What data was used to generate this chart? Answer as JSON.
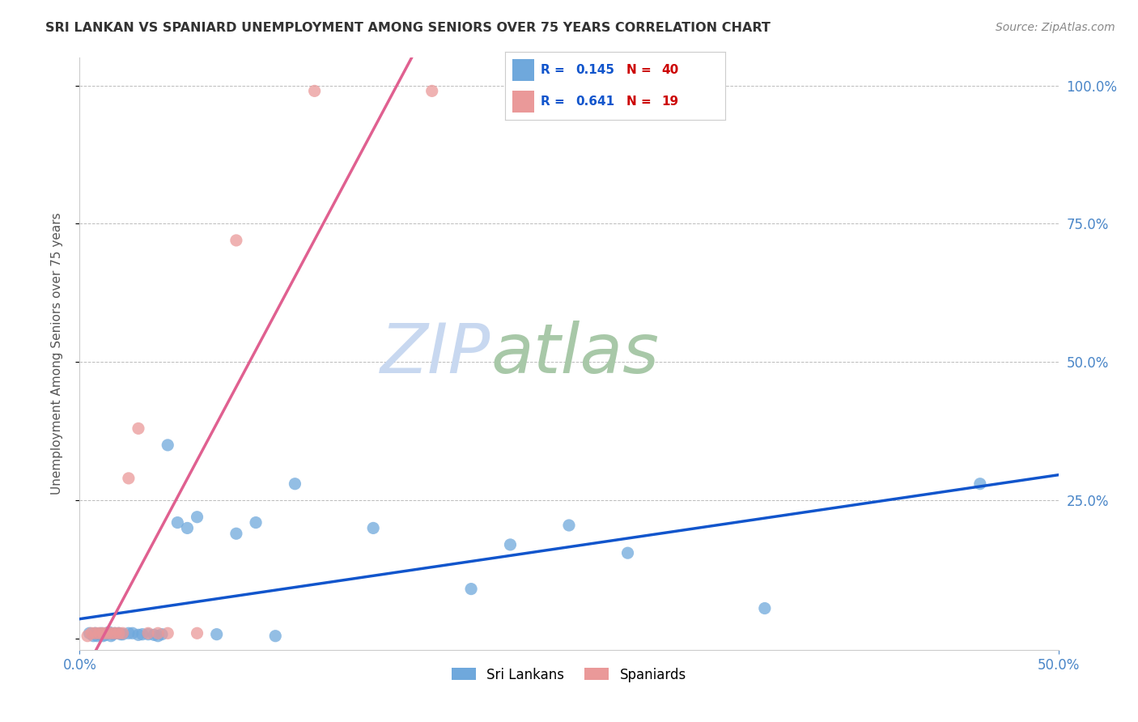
{
  "title": "SRI LANKAN VS SPANIARD UNEMPLOYMENT AMONG SENIORS OVER 75 YEARS CORRELATION CHART",
  "source": "Source: ZipAtlas.com",
  "ylabel": "Unemployment Among Seniors over 75 years",
  "xlim": [
    0,
    0.5
  ],
  "ylim": [
    -0.02,
    1.05
  ],
  "sri_lankans_x": [
    0.005,
    0.007,
    0.008,
    0.009,
    0.01,
    0.011,
    0.012,
    0.013,
    0.014,
    0.015,
    0.016,
    0.017,
    0.018,
    0.02,
    0.021,
    0.022,
    0.025,
    0.027,
    0.03,
    0.032,
    0.035,
    0.038,
    0.04,
    0.042,
    0.045,
    0.05,
    0.055,
    0.06,
    0.07,
    0.08,
    0.09,
    0.1,
    0.11,
    0.15,
    0.2,
    0.22,
    0.25,
    0.28,
    0.35,
    0.46
  ],
  "sri_lankans_y": [
    0.01,
    0.005,
    0.01,
    0.005,
    0.008,
    0.01,
    0.005,
    0.007,
    0.01,
    0.012,
    0.005,
    0.008,
    0.01,
    0.01,
    0.008,
    0.008,
    0.01,
    0.01,
    0.007,
    0.008,
    0.008,
    0.007,
    0.005,
    0.008,
    0.35,
    0.21,
    0.2,
    0.22,
    0.008,
    0.19,
    0.21,
    0.005,
    0.28,
    0.2,
    0.09,
    0.17,
    0.205,
    0.155,
    0.055,
    0.28
  ],
  "spaniards_x": [
    0.004,
    0.006,
    0.008,
    0.01,
    0.012,
    0.014,
    0.016,
    0.018,
    0.02,
    0.022,
    0.025,
    0.03,
    0.035,
    0.04,
    0.045,
    0.06,
    0.08,
    0.12,
    0.18
  ],
  "spaniards_y": [
    0.005,
    0.01,
    0.01,
    0.01,
    0.01,
    0.01,
    0.01,
    0.01,
    0.01,
    0.01,
    0.29,
    0.38,
    0.01,
    0.01,
    0.01,
    0.01,
    0.72,
    0.99,
    0.99
  ],
  "sri_lankans_R": 0.145,
  "sri_lankans_N": 40,
  "spaniards_R": 0.641,
  "spaniards_N": 19,
  "color_sri_lankans": "#6fa8dc",
  "color_spaniards": "#ea9999",
  "color_sri_lankans_line": "#1155cc",
  "color_spaniards_line": "#e06090",
  "watermark_zip": "ZIP",
  "watermark_atlas": "atlas",
  "watermark_color_zip": "#c8d8f0",
  "watermark_color_atlas": "#a8c8a8",
  "legend_R_color": "#1155cc",
  "legend_N_color": "#cc0000",
  "background_color": "#ffffff",
  "ytick_positions": [
    0,
    0.25,
    0.5,
    0.75,
    1.0
  ],
  "ytick_labels": [
    "",
    "25.0%",
    "50.0%",
    "75.0%",
    "100.0%"
  ],
  "xtick_positions": [
    0.0,
    0.5
  ],
  "xtick_labels": [
    "0.0%",
    "50.0%"
  ]
}
